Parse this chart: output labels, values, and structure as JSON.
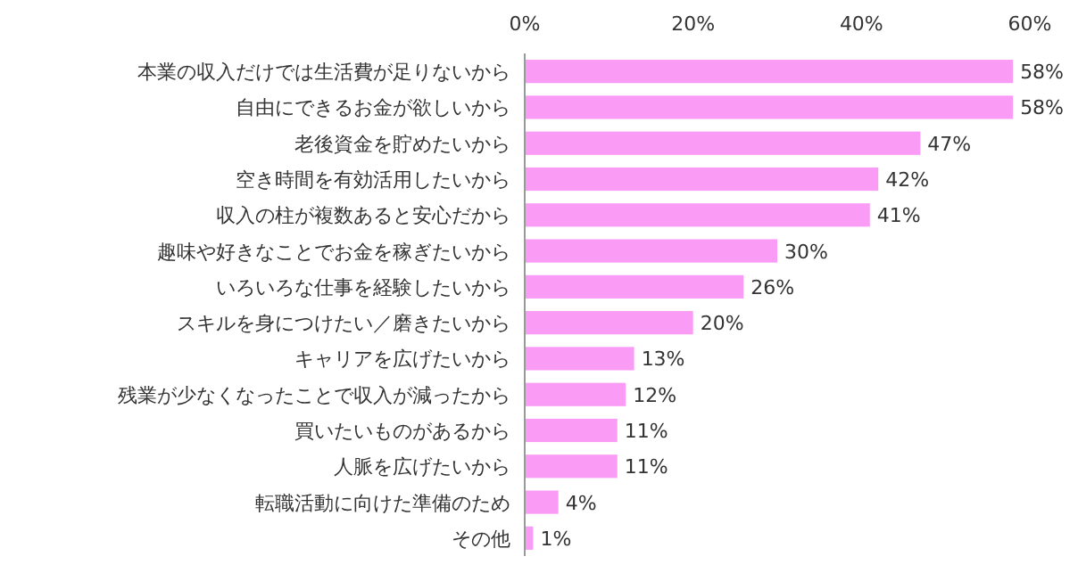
{
  "chart_data": {
    "type": "bar",
    "orientation": "horizontal",
    "categories": [
      "本業の収入だけでは生活費が足りないから",
      "自由にできるお金が欲しいから",
      "老後資金を貯めたいから",
      "空き時間を有効活用したいから",
      "収入の柱が複数あると安心だから",
      "趣味や好きなことでお金を稼ぎたいから",
      "いろいろな仕事を経験したいから",
      "スキルを身につけたい／磨きたいから",
      "キャリアを広げたいから",
      "残業が少なくなったことで収入が減ったから",
      "買いたいものがあるから",
      "人脈を広げたいから",
      "転職活動に向けた準備のため",
      "その他"
    ],
    "values": [
      58,
      58,
      47,
      42,
      41,
      30,
      26,
      20,
      13,
      12,
      11,
      11,
      4,
      1
    ],
    "value_labels": [
      "58%",
      "58%",
      "47%",
      "42%",
      "41%",
      "30%",
      "26%",
      "20%",
      "13%",
      "12%",
      "11%",
      "11%",
      "4%",
      "1%"
    ],
    "color": "#fa9cf5",
    "xlim": [
      0,
      60
    ],
    "xticks": [
      {
        "value": 0,
        "label": "0%"
      },
      {
        "value": 20,
        "label": "20%"
      },
      {
        "value": 40,
        "label": "40%"
      },
      {
        "value": 60,
        "label": "60%"
      }
    ]
  }
}
